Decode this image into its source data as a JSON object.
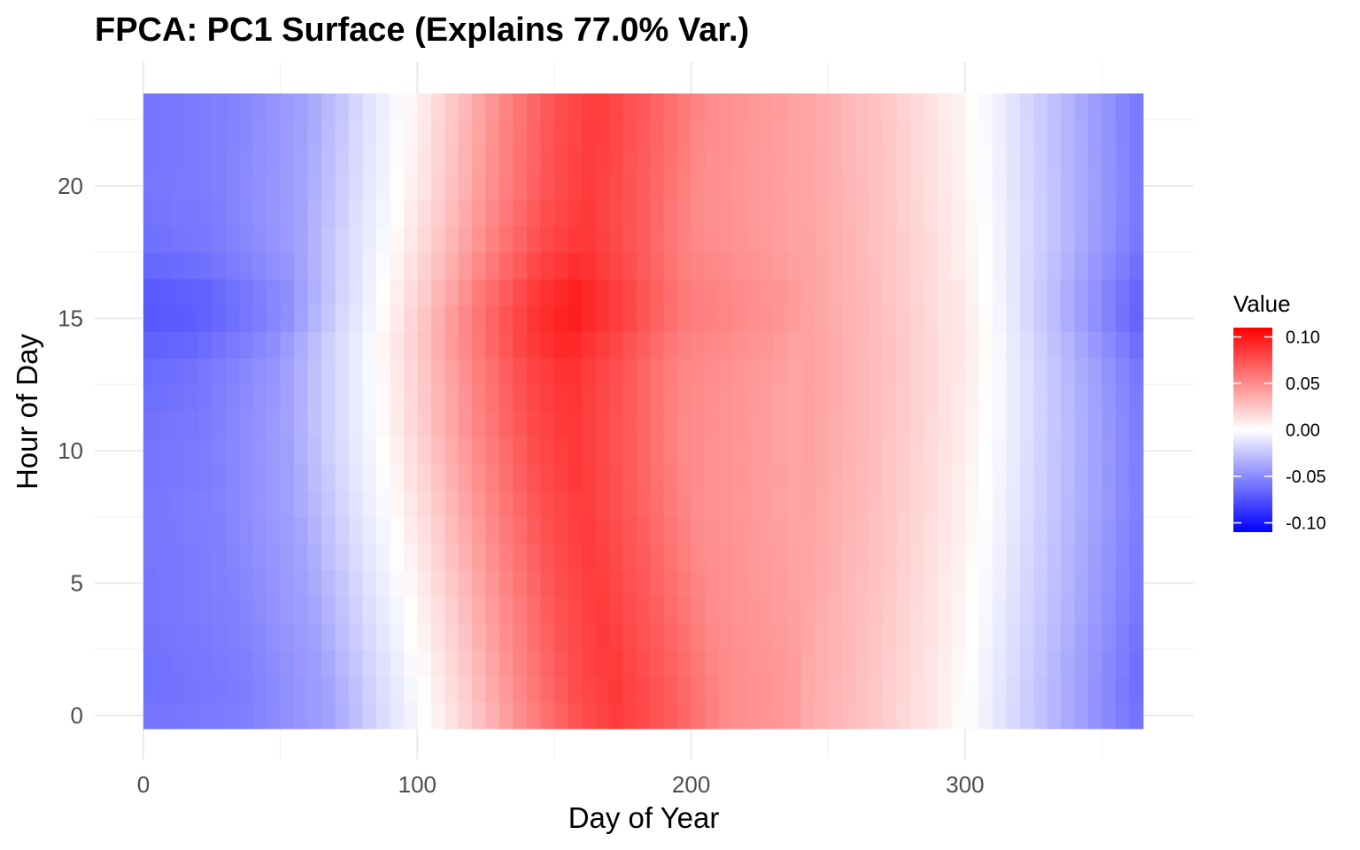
{
  "chart_data": {
    "type": "heatmap",
    "title": "FPCA: PC1 Surface (Explains 77.0% Var.)",
    "xlabel": "Day of Year",
    "ylabel": "Hour of Day",
    "x_ticks": [
      0,
      100,
      200,
      300
    ],
    "y_ticks": [
      0,
      5,
      10,
      15,
      20
    ],
    "xlim": [
      0,
      365
    ],
    "ylim": [
      0,
      23
    ],
    "grid": true,
    "legend": {
      "title": "Value",
      "position": "right",
      "ticks": [
        0.1,
        0.05,
        0.0,
        -0.05,
        -0.1
      ],
      "tick_labels": [
        "0.10",
        "0.05",
        "0.00",
        "-0.05",
        "-0.10"
      ],
      "limits": [
        -0.11,
        0.11
      ]
    },
    "colors": {
      "low": "#0000ff",
      "mid": "#ffffff",
      "high": "#ff0000"
    },
    "day_profile": [
      {
        "day": 0,
        "value": -0.06
      },
      {
        "day": 30,
        "value": -0.055
      },
      {
        "day": 60,
        "value": -0.04
      },
      {
        "day": 80,
        "value": -0.015
      },
      {
        "day": 95,
        "value": 0.0
      },
      {
        "day": 110,
        "value": 0.02
      },
      {
        "day": 130,
        "value": 0.05
      },
      {
        "day": 150,
        "value": 0.075
      },
      {
        "day": 165,
        "value": 0.085
      },
      {
        "day": 185,
        "value": 0.07
      },
      {
        "day": 205,
        "value": 0.05
      },
      {
        "day": 240,
        "value": 0.04
      },
      {
        "day": 270,
        "value": 0.025
      },
      {
        "day": 295,
        "value": 0.008
      },
      {
        "day": 310,
        "value": -0.005
      },
      {
        "day": 335,
        "value": -0.03
      },
      {
        "day": 365,
        "value": -0.06
      }
    ],
    "hour_amplitude": [
      {
        "hour": 0,
        "amp": 1.0
      },
      {
        "hour": 1,
        "amp": 1.02
      },
      {
        "hour": 2,
        "amp": 1.02
      },
      {
        "hour": 3,
        "amp": 1.01
      },
      {
        "hour": 4,
        "amp": 1.0
      },
      {
        "hour": 5,
        "amp": 1.0
      },
      {
        "hour": 6,
        "amp": 1.0
      },
      {
        "hour": 7,
        "amp": 1.0
      },
      {
        "hour": 8,
        "amp": 1.0
      },
      {
        "hour": 9,
        "amp": 1.02
      },
      {
        "hour": 10,
        "amp": 1.03
      },
      {
        "hour": 11,
        "amp": 1.05
      },
      {
        "hour": 12,
        "amp": 1.07
      },
      {
        "hour": 13,
        "amp": 1.1
      },
      {
        "hour": 14,
        "amp": 1.18
      },
      {
        "hour": 15,
        "amp": 1.25
      },
      {
        "hour": 16,
        "amp": 1.22
      },
      {
        "hour": 17,
        "amp": 1.12
      },
      {
        "hour": 18,
        "amp": 1.05
      },
      {
        "hour": 19,
        "amp": 1.02
      },
      {
        "hour": 20,
        "amp": 1.0
      },
      {
        "hour": 21,
        "amp": 1.0
      },
      {
        "hour": 22,
        "amp": 1.0
      },
      {
        "hour": 23,
        "amp": 1.0
      }
    ],
    "hour_shift_days": [
      {
        "hour": 0,
        "shift": 8
      },
      {
        "hour": 2,
        "shift": 5
      },
      {
        "hour": 5,
        "shift": 0
      },
      {
        "hour": 8,
        "shift": -5
      },
      {
        "hour": 11,
        "shift": -9
      },
      {
        "hour": 14,
        "shift": -10
      },
      {
        "hour": 17,
        "shift": -6
      },
      {
        "hour": 20,
        "shift": -2
      },
      {
        "hour": 23,
        "shift": 0
      }
    ]
  }
}
